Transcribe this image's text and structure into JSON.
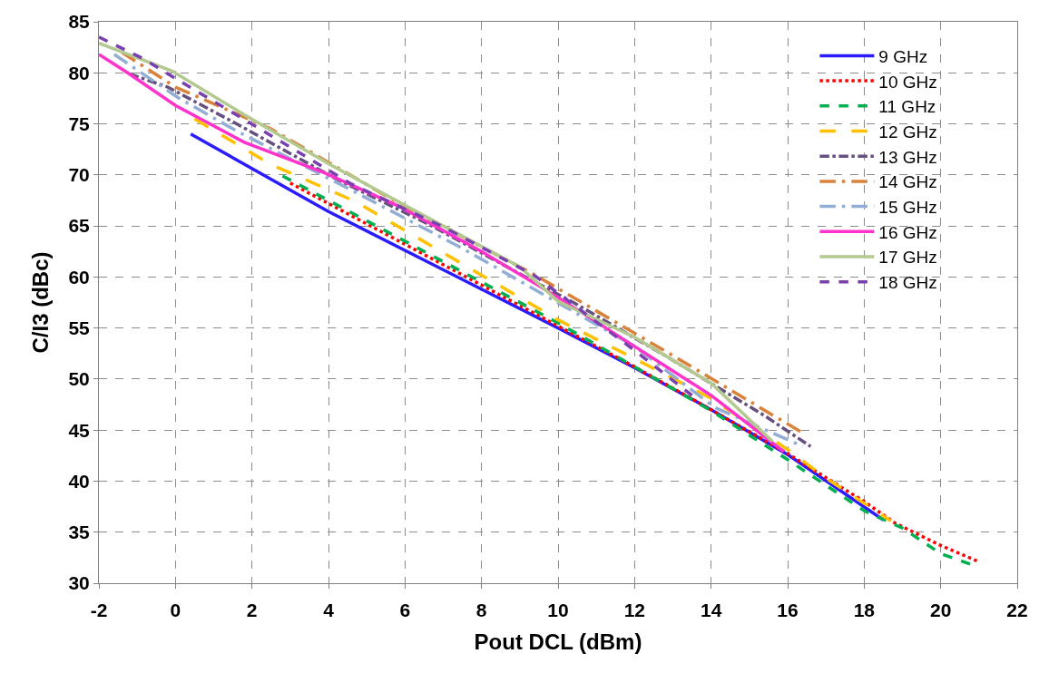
{
  "chart_data": {
    "type": "line",
    "xlabel": "Pout DCL (dBm)",
    "ylabel": "C/I3 (dBc)",
    "xlim": [
      -2,
      22
    ],
    "xticks": [
      -2,
      0,
      2,
      4,
      6,
      8,
      10,
      12,
      14,
      16,
      18,
      20,
      22
    ],
    "ylim": [
      30,
      85
    ],
    "yticks": [
      30,
      35,
      40,
      45,
      50,
      55,
      60,
      65,
      70,
      75,
      80,
      85
    ],
    "grid": true,
    "legend": "top right",
    "marker": "none",
    "series": [
      {
        "name": "9 GHz",
        "color": "#2b1cff",
        "line_style": "solid",
        "x": [
          0.4,
          4,
          10,
          12,
          14,
          16,
          18.5
        ],
        "values": [
          74,
          66.4,
          55,
          51.1,
          47,
          42.6,
          36.2
        ]
      },
      {
        "name": "10 GHz",
        "color": "#ff0000",
        "line_style": "dotted",
        "x": [
          3,
          10,
          12,
          14,
          16,
          18,
          18.8,
          20,
          21
        ],
        "values": [
          69.2,
          55.2,
          51.2,
          47,
          42.7,
          38,
          35.9,
          33.7,
          32.1
        ]
      },
      {
        "name": "11 GHz",
        "color": "#00b050",
        "line_style": "dashed",
        "x": [
          2.8,
          10,
          12,
          14,
          16,
          18,
          19,
          20,
          20.9
        ],
        "values": [
          69.9,
          55.5,
          51.2,
          46.9,
          42.1,
          37.1,
          35.4,
          32.9,
          31.7
        ]
      },
      {
        "name": "12 GHz",
        "color": "#ffc000",
        "line_style": "longdash",
        "x": [
          0.5,
          2.5,
          4.7,
          10,
          12,
          14,
          16,
          17,
          18.7
        ],
        "values": [
          75.5,
          71,
          67.4,
          55.8,
          52,
          48.1,
          43.1,
          40.3,
          36.1
        ]
      },
      {
        "name": "13 GHz",
        "color": "#65507f",
        "line_style": "dashdot",
        "x": [
          -1.2,
          -0.2,
          1.6,
          4.2,
          6.6,
          9.4,
          10.4,
          12.8,
          15.4,
          16.6
        ],
        "values": [
          79.9,
          78.6,
          75,
          69.6,
          65.2,
          59.5,
          57.5,
          52.3,
          46.4,
          43.4
        ]
      },
      {
        "name": "14 GHz",
        "color": "#d9823a",
        "line_style": "longdashdot",
        "x": [
          -1.4,
          0,
          2.5,
          5.8,
          9.3,
          13,
          16.4
        ],
        "values": [
          82,
          78.6,
          74.5,
          67.3,
          60.4,
          52.3,
          44.7
        ]
      },
      {
        "name": "15 GHz",
        "color": "#93aed4",
        "line_style": "longdashdot",
        "x": [
          -1.6,
          0.1,
          1.6,
          3.1,
          4.6,
          7.5,
          12,
          14.1,
          16.4
        ],
        "values": [
          81.8,
          77.5,
          74.3,
          71.4,
          68.5,
          62.8,
          53.2,
          47.2,
          43.4
        ]
      },
      {
        "name": "16 GHz",
        "color": "#ff33cc",
        "line_style": "solid",
        "x": [
          -2,
          -1.25,
          0,
          1.8,
          3.9,
          5.8,
          8,
          10,
          12,
          14,
          15.9
        ],
        "values": [
          81.8,
          80,
          76.8,
          73.2,
          70.2,
          67,
          62.5,
          58,
          53.2,
          48.4,
          42.9
        ]
      },
      {
        "name": "17 GHz",
        "color": "#b3c98f",
        "line_style": "solid",
        "x": [
          -2,
          -0.1,
          1.8,
          4,
          6.6,
          9,
          10,
          12,
          14,
          15.6
        ],
        "values": [
          82.9,
          80.2,
          75.9,
          71.1,
          65.8,
          61,
          57.6,
          54.1,
          49.6,
          43.9
        ]
      },
      {
        "name": "18 GHz",
        "color": "#7a3fb0",
        "line_style": "dashed",
        "x": [
          -2,
          -0.85,
          0.2,
          2.3,
          4.6,
          7,
          9.4,
          12,
          13.5
        ],
        "values": [
          83.5,
          81.4,
          79,
          74.3,
          69.1,
          64.9,
          60.1,
          52.8,
          48.4
        ]
      }
    ]
  }
}
